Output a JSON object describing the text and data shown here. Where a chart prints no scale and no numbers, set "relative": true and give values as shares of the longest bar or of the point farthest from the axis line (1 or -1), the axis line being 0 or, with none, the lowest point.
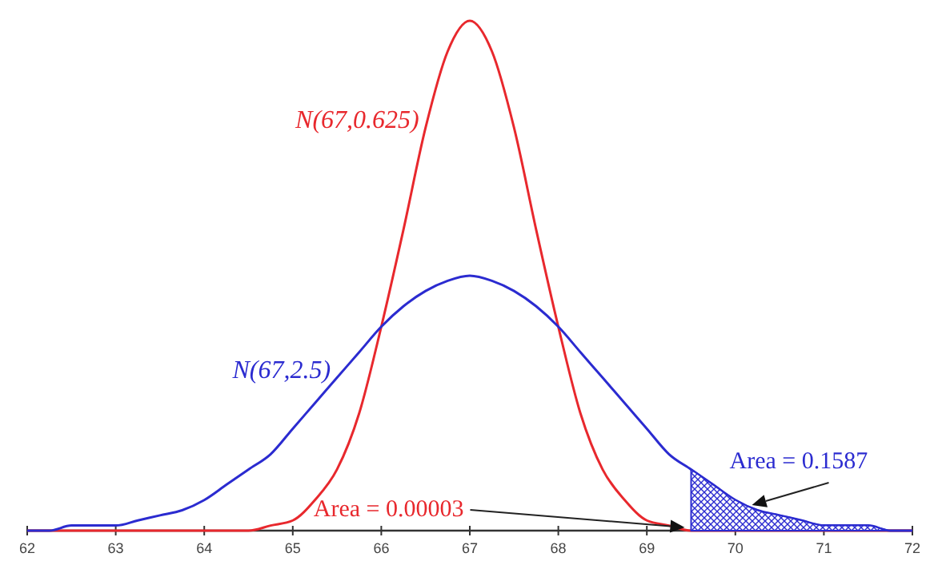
{
  "chart_data": {
    "type": "line",
    "relative": true,
    "x": [
      62,
      62.25,
      62.5,
      62.75,
      63,
      63.25,
      63.5,
      63.75,
      64,
      64.25,
      64.5,
      64.75,
      65,
      65.25,
      65.5,
      65.75,
      66,
      66.25,
      66.5,
      66.75,
      67,
      67.25,
      67.5,
      67.75,
      68,
      68.25,
      68.5,
      68.75,
      69,
      69.25,
      69.5,
      69.75,
      70,
      70.25,
      70.5,
      70.75,
      71,
      71.25,
      71.5,
      71.75,
      72
    ],
    "xlim": [
      62,
      72
    ],
    "xticks": [
      62,
      63,
      64,
      65,
      66,
      67,
      68,
      69,
      70,
      71,
      72
    ],
    "series": [
      {
        "name": "N(67,0.625)",
        "color": "#e8282d",
        "values": [
          0,
          0,
          0,
          0,
          0,
          0,
          0,
          0,
          0,
          0,
          0,
          0.01,
          0.02,
          0.06,
          0.12,
          0.23,
          0.4,
          0.59,
          0.79,
          0.94,
          1,
          0.94,
          0.79,
          0.59,
          0.4,
          0.23,
          0.12,
          0.06,
          0.02,
          0.01,
          0,
          0,
          0,
          0,
          0,
          0,
          0,
          0,
          0,
          0,
          0
        ]
      },
      {
        "name": "N(67,2.5)",
        "color": "#2b2bd0",
        "values": [
          0,
          0,
          0.01,
          0.01,
          0.01,
          0.02,
          0.03,
          0.04,
          0.06,
          0.09,
          0.12,
          0.15,
          0.2,
          0.25,
          0.3,
          0.35,
          0.4,
          0.44,
          0.47,
          0.49,
          0.5,
          0.49,
          0.47,
          0.44,
          0.4,
          0.35,
          0.3,
          0.25,
          0.2,
          0.15,
          0.12,
          0.09,
          0.06,
          0.04,
          0.03,
          0.02,
          0.01,
          0.01,
          0.01,
          0,
          0
        ]
      },
      {
        "type": "area",
        "color": "#2b2bd0",
        "x": [
          69.5,
          69.75,
          70,
          70.25,
          70.5,
          70.75,
          71,
          71.25,
          71.5,
          71.75,
          72
        ],
        "values": [
          0.12,
          0.09,
          0.06,
          0.04,
          0.03,
          0.02,
          0.01,
          0.01,
          0.01,
          0,
          0
        ]
      }
    ],
    "annotations": [
      "Area = 0.00003",
      "Area = 0.1587"
    ]
  }
}
